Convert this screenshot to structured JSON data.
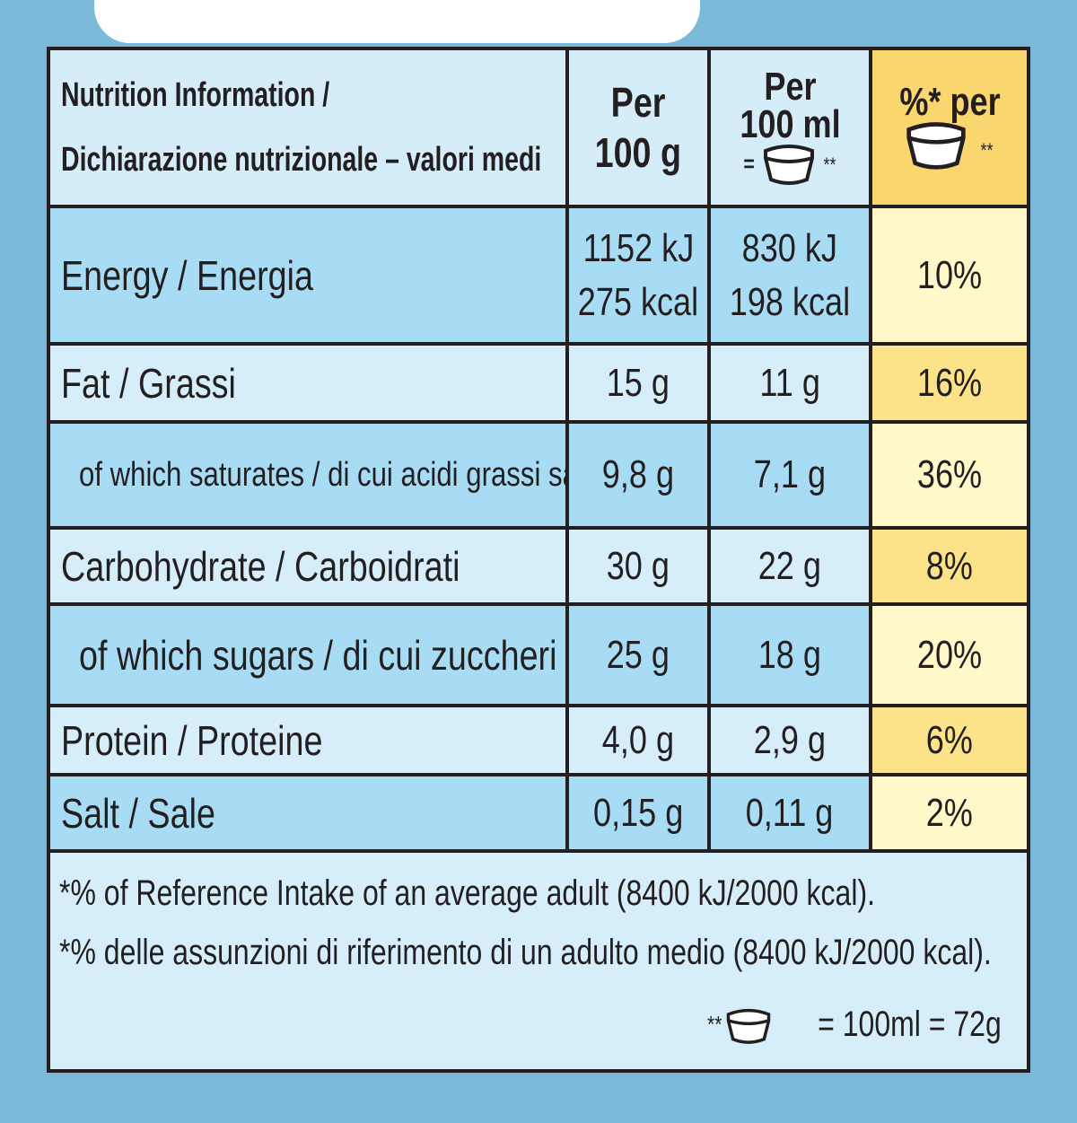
{
  "header": {
    "title_lines": [
      "Nutrition Information /",
      "Dichiarazione nutrizionale – valori medi"
    ],
    "col_100g": [
      "Per",
      "100 g"
    ],
    "col_100ml": [
      "Per",
      "100 ml",
      "="
    ],
    "col_100ml_note": "**",
    "col_ri": "%* per",
    "col_ri_note": "**"
  },
  "rows": [
    {
      "label": "Energy / Energia",
      "per_100g": [
        "1152 kJ",
        "275 kcal"
      ],
      "per_100ml": [
        "830 kJ",
        "198 kcal"
      ],
      "ri": "10%"
    },
    {
      "label": "Fat / Grassi",
      "per_100g": [
        "15 g"
      ],
      "per_100ml": [
        "11 g"
      ],
      "ri": "16%"
    },
    {
      "label": "of which saturates / di cui acidi grassi saturi",
      "per_100g": [
        "9,8 g"
      ],
      "per_100ml": [
        "7,1 g"
      ],
      "ri": "36%"
    },
    {
      "label": "Carbohydrate / Carboidrati",
      "per_100g": [
        "30 g"
      ],
      "per_100ml": [
        "22 g"
      ],
      "ri": "8%"
    },
    {
      "label": "of which sugars / di cui zuccheri",
      "per_100g": [
        "25 g"
      ],
      "per_100ml": [
        "18 g"
      ],
      "ri": "20%"
    },
    {
      "label": "Protein / Proteine",
      "per_100g": [
        "4,0 g"
      ],
      "per_100ml": [
        "2,9 g"
      ],
      "ri": "6%"
    },
    {
      "label": "Salt / Sale",
      "per_100g": [
        "0,15 g"
      ],
      "per_100ml": [
        "0,11 g"
      ],
      "ri": "2%"
    }
  ],
  "footer": {
    "lines": [
      "*% of Reference Intake of an average adult (8400 kJ/2000 kcal).",
      "*% delle assunzioni di riferimento di un adulto medio (8400 kJ/2000 kcal)."
    ],
    "serving_prefix": "**",
    "serving_text": "= 100ml = 72g"
  }
}
